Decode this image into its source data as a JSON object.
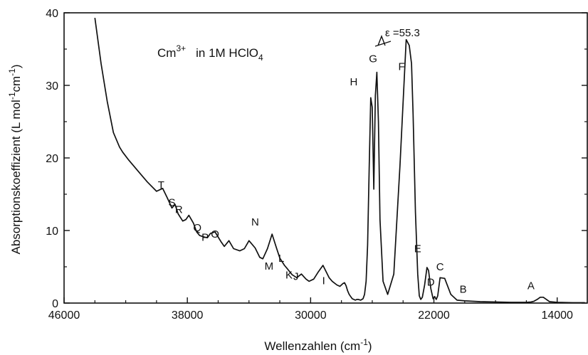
{
  "chart_data": {
    "type": "line",
    "title_main": "Cm",
    "title_sup": "3+",
    "title_rest": "in 1M HClO",
    "title_sub": "4",
    "xlabel_main": "Wellenzahlen (cm",
    "xlabel_sup": "-1",
    "xlabel_end": ")",
    "ylabel_main": "Absorptionskoeffizient  (L mol",
    "ylabel_sup1": "-1",
    "ylabel_mid": "cm",
    "ylabel_sup2": "-1",
    "ylabel_end": ")",
    "xlim": [
      46000,
      12000
    ],
    "ylim": [
      0,
      40
    ],
    "x_reversed": true,
    "grid": false,
    "x_ticks": [
      46000,
      38000,
      30000,
      22000,
      14000
    ],
    "x_tick_labels": [
      "46000",
      "38000",
      "30000",
      "22000",
      "14000"
    ],
    "y_ticks": [
      0,
      10,
      20,
      30,
      40
    ],
    "y_tick_labels": [
      "0",
      "10",
      "20",
      "30",
      "40"
    ],
    "annotation": "ε =55.3",
    "series": [
      {
        "x": [
          44000,
          43600,
          43200,
          42800,
          42400,
          42200,
          41800,
          41200,
          40600,
          40000,
          39600,
          39300,
          39000,
          38800,
          38600,
          38300,
          38100,
          37900,
          37600,
          37400,
          37200,
          36900,
          36700,
          36500,
          36200,
          35800,
          35600,
          35300,
          35000,
          34600,
          34300,
          34000,
          33600,
          33300,
          33100,
          32800,
          32500,
          32200,
          32000,
          31700,
          31500,
          31200,
          30900,
          30600,
          30300,
          30100,
          29800,
          29500,
          29200,
          28800,
          28600,
          28300,
          28100,
          27900,
          27800,
          27700,
          27600,
          27500,
          27400,
          27300,
          27200,
          27100,
          27000,
          26900,
          26750,
          26600,
          26500,
          26400,
          26300,
          26200,
          26100,
          26000,
          25900,
          25800,
          25700,
          25600,
          25500,
          25300,
          25000,
          24600,
          24200,
          23800,
          23600,
          23450,
          23350,
          23200,
          23050,
          22950,
          22850,
          22750,
          22600,
          22450,
          22350,
          22200,
          22050,
          21950,
          21850,
          21750,
          21600,
          21300,
          20900,
          20500,
          20000,
          19000,
          18000,
          17000,
          16500,
          16000,
          15700,
          15500,
          15300,
          15100,
          14900,
          14700,
          14500,
          14000,
          13000,
          12200
        ],
        "y": [
          39.3,
          33.0,
          27.8,
          23.5,
          21.5,
          20.8,
          19.7,
          18.2,
          16.7,
          15.4,
          15.8,
          14.5,
          13.1,
          13.6,
          12.3,
          11.3,
          11.5,
          12.1,
          11.0,
          9.8,
          9.3,
          9.1,
          9.0,
          9.6,
          9.8,
          8.4,
          7.8,
          8.6,
          7.5,
          7.2,
          7.5,
          8.6,
          7.6,
          6.3,
          6.1,
          7.5,
          9.5,
          7.5,
          6.2,
          5.2,
          4.7,
          3.9,
          3.5,
          4.0,
          3.3,
          3.0,
          3.3,
          4.3,
          5.2,
          3.5,
          3.0,
          2.5,
          2.3,
          2.7,
          2.8,
          2.4,
          1.7,
          1.2,
          0.9,
          0.6,
          0.5,
          0.4,
          0.5,
          0.5,
          0.4,
          0.6,
          1.2,
          3.0,
          8.0,
          18.5,
          28.3,
          27.0,
          15.7,
          28.6,
          31.8,
          25.0,
          11.5,
          3.0,
          1.2,
          4.0,
          19.0,
          36.3,
          35.5,
          33.0,
          26.0,
          12.5,
          4.0,
          1.0,
          0.5,
          0.8,
          2.5,
          4.9,
          4.5,
          2.0,
          0.6,
          0.9,
          0.5,
          1.0,
          3.5,
          3.4,
          1.2,
          0.4,
          0.3,
          0.2,
          0.15,
          0.1,
          0.1,
          0.1,
          0.15,
          0.25,
          0.5,
          0.8,
          0.8,
          0.5,
          0.2,
          0.1,
          0.05,
          0.05
        ]
      }
    ],
    "peak_labels": [
      {
        "label": "T",
        "x": 39700,
        "y": 15.8
      },
      {
        "label": "S",
        "x": 39000,
        "y": 13.4
      },
      {
        "label": "R",
        "x": 38550,
        "y": 12.4
      },
      {
        "label": "Q",
        "x": 37350,
        "y": 9.9
      },
      {
        "label": "P",
        "x": 36850,
        "y": 8.6
      },
      {
        "label": "O",
        "x": 36200,
        "y": 9.0
      },
      {
        "label": "N",
        "x": 33600,
        "y": 10.7
      },
      {
        "label": "M",
        "x": 32700,
        "y": 4.6
      },
      {
        "label": "L",
        "x": 31900,
        "y": 5.7
      },
      {
        "label": "K",
        "x": 31400,
        "y": 3.4
      },
      {
        "label": "J",
        "x": 30950,
        "y": 3.2
      },
      {
        "label": "I",
        "x": 29150,
        "y": 2.6
      },
      {
        "label": "H",
        "x": 27200,
        "y": 30.0
      },
      {
        "label": "G",
        "x": 25950,
        "y": 33.2
      },
      {
        "label": "F",
        "x": 24100,
        "y": 32.1
      },
      {
        "label": "E",
        "x": 23050,
        "y": 7.0
      },
      {
        "label": "D",
        "x": 22200,
        "y": 2.4
      },
      {
        "label": "C",
        "x": 21600,
        "y": 4.5
      },
      {
        "label": "B",
        "x": 20100,
        "y": 1.4
      },
      {
        "label": "A",
        "x": 15700,
        "y": 1.9
      }
    ]
  }
}
